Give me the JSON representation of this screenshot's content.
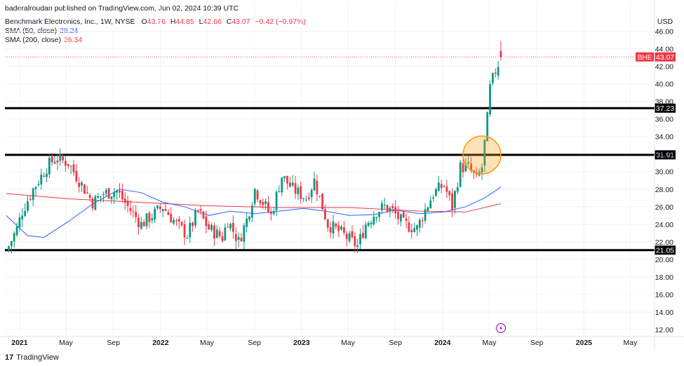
{
  "publisher_line": "baderalroudan published on TradingView.com, Jun 02, 2024 10:39 UTC",
  "legend": {
    "symbol": "Benchmark Electronics, Inc., 1W, NYSE",
    "open_label": "O",
    "open": "43.76",
    "high_label": "H",
    "high": "44.85",
    "low_label": "L",
    "low": "42.66",
    "close_label": "C",
    "close": "43.07",
    "change": "−0.42 (−0.97%)",
    "sma50_label": "SMA (50, close)",
    "sma50_value": "28.24",
    "sma200_label": "SMA (200, close)",
    "sma200_value": "26.34"
  },
  "currency": "USD",
  "footer": {
    "logo": "17",
    "brand": "TradingView"
  },
  "colors": {
    "up": "#089981",
    "down": "#f23645",
    "sma50": "#2962ff",
    "sma200": "#f23645",
    "highlight": "#ff9800"
  },
  "chart_data": {
    "type": "candlestick",
    "y_ticks": [
      "46.00",
      "44.00",
      "42.00",
      "40.00",
      "38.00",
      "36.00",
      "34.00",
      "32.00",
      "30.00",
      "28.00",
      "26.00",
      "24.00",
      "22.00",
      "20.00",
      "18.00",
      "16.00",
      "14.00",
      "12.00"
    ],
    "x_ticks": [
      "2021",
      "May",
      "Sep",
      "2022",
      "May",
      "Sep",
      "2023",
      "May",
      "Sep",
      "2024",
      "May",
      "Sep",
      "2025",
      "May"
    ],
    "ylim": [
      11.2,
      47.8
    ],
    "horizontal_levels": [
      {
        "value": 37.23,
        "label": "37.23"
      },
      {
        "value": 31.91,
        "label": "31.91"
      },
      {
        "value": 21.05,
        "label": "21.05"
      }
    ],
    "last_price": {
      "symbol": "BHE",
      "value": 43.07,
      "label": "43.07"
    },
    "highlight_circle": {
      "date": "2024-04-12",
      "value": 31.9
    },
    "key_closes": [
      {
        "date": "2020-12-04",
        "close": 21.5
      },
      {
        "date": "2020-12-25",
        "close": 23.5
      },
      {
        "date": "2021-01-08",
        "close": 25.5
      },
      {
        "date": "2021-02-05",
        "close": 28.0
      },
      {
        "date": "2021-03-12",
        "close": 30.5
      },
      {
        "date": "2021-04-02",
        "close": 31.5
      },
      {
        "date": "2021-05-07",
        "close": 31.0
      },
      {
        "date": "2021-06-04",
        "close": 29.0
      },
      {
        "date": "2021-07-09",
        "close": 26.5
      },
      {
        "date": "2021-08-06",
        "close": 27.5
      },
      {
        "date": "2021-09-10",
        "close": 27.8
      },
      {
        "date": "2021-10-08",
        "close": 26.0
      },
      {
        "date": "2021-11-12",
        "close": 24.0
      },
      {
        "date": "2021-12-10",
        "close": 25.0
      },
      {
        "date": "2022-01-07",
        "close": 26.0
      },
      {
        "date": "2022-02-11",
        "close": 24.0
      },
      {
        "date": "2022-03-11",
        "close": 22.8
      },
      {
        "date": "2022-04-08",
        "close": 25.5
      },
      {
        "date": "2022-05-06",
        "close": 23.5
      },
      {
        "date": "2022-06-10",
        "close": 22.5
      },
      {
        "date": "2022-06-24",
        "close": 24.5
      },
      {
        "date": "2022-07-22",
        "close": 22.0
      },
      {
        "date": "2022-08-12",
        "close": 24.5
      },
      {
        "date": "2022-09-02",
        "close": 28.0
      },
      {
        "date": "2022-10-14",
        "close": 25.0
      },
      {
        "date": "2022-11-11",
        "close": 29.5
      },
      {
        "date": "2022-12-09",
        "close": 28.0
      },
      {
        "date": "2023-01-13",
        "close": 27.0
      },
      {
        "date": "2023-02-03",
        "close": 29.0
      },
      {
        "date": "2023-03-10",
        "close": 24.0
      },
      {
        "date": "2023-04-14",
        "close": 23.0
      },
      {
        "date": "2023-05-12",
        "close": 22.0
      },
      {
        "date": "2023-05-26",
        "close": 21.5
      },
      {
        "date": "2023-06-16",
        "close": 24.0
      },
      {
        "date": "2023-07-14",
        "close": 25.5
      },
      {
        "date": "2023-08-04",
        "close": 26.0
      },
      {
        "date": "2023-08-25",
        "close": 25.5
      },
      {
        "date": "2023-09-22",
        "close": 24.0
      },
      {
        "date": "2023-10-27",
        "close": 23.5
      },
      {
        "date": "2023-11-10",
        "close": 25.0
      },
      {
        "date": "2023-12-08",
        "close": 27.5
      },
      {
        "date": "2024-01-05",
        "close": 28.5
      },
      {
        "date": "2024-01-26",
        "close": 26.0
      },
      {
        "date": "2024-02-16",
        "close": 30.5
      },
      {
        "date": "2024-03-08",
        "close": 30.5
      },
      {
        "date": "2024-03-29",
        "close": 29.0
      },
      {
        "date": "2024-04-12",
        "close": 30.5
      },
      {
        "date": "2024-04-26",
        "close": 36.0
      },
      {
        "date": "2024-05-03",
        "close": 39.5
      },
      {
        "date": "2024-05-17",
        "close": 41.5
      },
      {
        "date": "2024-05-31",
        "close": 43.07
      }
    ],
    "sma50": [
      {
        "date": "2020-11-27",
        "value": 25.0
      },
      {
        "date": "2021-01-22",
        "value": 22.7
      },
      {
        "date": "2021-03-05",
        "value": 22.5
      },
      {
        "date": "2021-05-07",
        "value": 24.3
      },
      {
        "date": "2021-07-09",
        "value": 26.3
      },
      {
        "date": "2021-09-17",
        "value": 28.0
      },
      {
        "date": "2021-11-12",
        "value": 27.6
      },
      {
        "date": "2022-01-07",
        "value": 26.5
      },
      {
        "date": "2022-03-04",
        "value": 26.0
      },
      {
        "date": "2022-05-06",
        "value": 25.0
      },
      {
        "date": "2022-07-01",
        "value": 25.5
      },
      {
        "date": "2022-09-02",
        "value": 25.2
      },
      {
        "date": "2022-11-04",
        "value": 25.5
      },
      {
        "date": "2023-01-06",
        "value": 25.8
      },
      {
        "date": "2023-03-03",
        "value": 25.5
      },
      {
        "date": "2023-05-05",
        "value": 25.0
      },
      {
        "date": "2023-07-07",
        "value": 25.1
      },
      {
        "date": "2023-09-01",
        "value": 25.6
      },
      {
        "date": "2023-11-03",
        "value": 25.2
      },
      {
        "date": "2024-01-05",
        "value": 25.4
      },
      {
        "date": "2024-03-01",
        "value": 26.0
      },
      {
        "date": "2024-04-19",
        "value": 27.0
      },
      {
        "date": "2024-05-31",
        "value": 28.24
      }
    ],
    "sma200": [
      {
        "date": "2020-11-27",
        "value": 27.5
      },
      {
        "date": "2021-05-07",
        "value": 26.9
      },
      {
        "date": "2021-11-05",
        "value": 26.5
      },
      {
        "date": "2022-05-06",
        "value": 26.1
      },
      {
        "date": "2022-11-04",
        "value": 25.9
      },
      {
        "date": "2023-05-05",
        "value": 25.9
      },
      {
        "date": "2023-11-03",
        "value": 25.5
      },
      {
        "date": "2024-03-01",
        "value": 25.4
      },
      {
        "date": "2024-05-31",
        "value": 26.34
      }
    ]
  }
}
